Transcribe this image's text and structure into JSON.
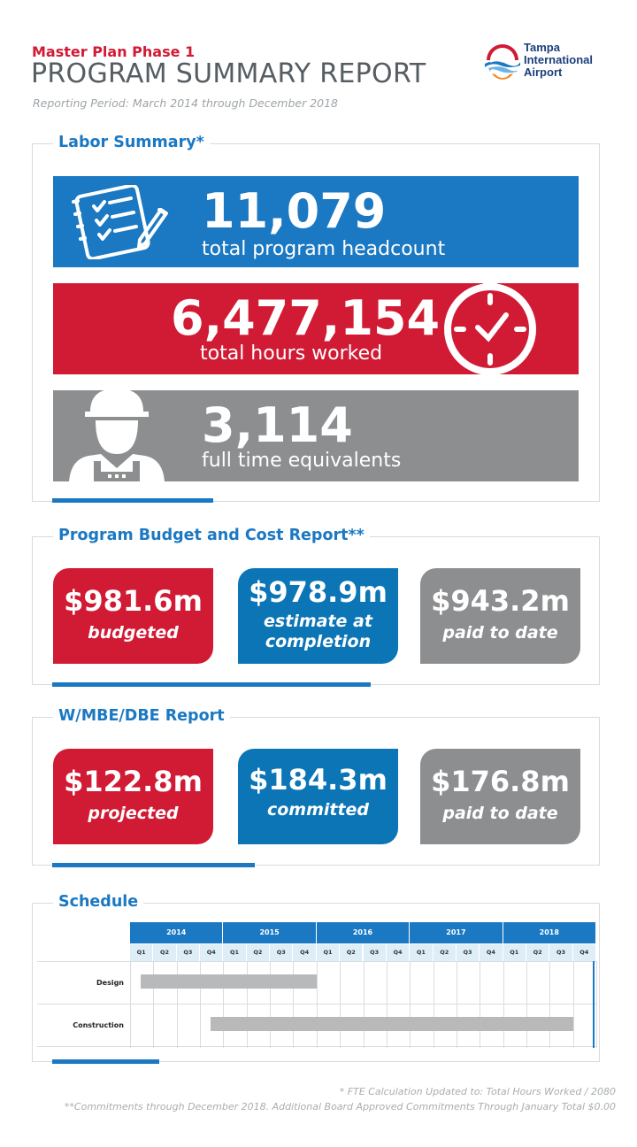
{
  "header": {
    "subtitle": "Master Plan Phase 1",
    "title": "PROGRAM SUMMARY REPORT",
    "period": "Reporting Period: March 2014 through December 2018",
    "logo_lines": [
      "Tampa",
      "International",
      "Airport"
    ]
  },
  "labor": {
    "title": "Labor Summary*",
    "items": [
      {
        "value": "11,079",
        "label": "total program headcount",
        "color": "#1b78c2",
        "icon": "notebook-icon"
      },
      {
        "value": "6,477,154",
        "label": "total hours worked",
        "color": "#d11a34",
        "icon": "clock-icon"
      },
      {
        "value": "3,114",
        "label": "full time equivalents",
        "color": "#8c8e90",
        "icon": "worker-icon"
      }
    ]
  },
  "budget": {
    "title": "Program Budget and Cost Report**",
    "cards": [
      {
        "value": "$981.6m",
        "label": "budgeted",
        "color": "#d11a34"
      },
      {
        "value": "$978.9m",
        "label": "estimate at completion",
        "color": "#0b75b6"
      },
      {
        "value": "$943.2m",
        "label": "paid to date",
        "color": "#8c8e90"
      }
    ]
  },
  "wmbe": {
    "title": "W/MBE/DBE Report",
    "cards": [
      {
        "value": "$122.8m",
        "label": "projected",
        "color": "#d11a34"
      },
      {
        "value": "$184.3m",
        "label": "committed",
        "color": "#0b75b6"
      },
      {
        "value": "$176.8m",
        "label": "paid to date",
        "color": "#8c8e90"
      }
    ]
  },
  "schedule": {
    "title": "Schedule",
    "years": [
      "2014",
      "2015",
      "2016",
      "2017",
      "2018"
    ],
    "quarters": [
      "Q1",
      "Q2",
      "Q3",
      "Q4"
    ],
    "rows": [
      {
        "label": "Design",
        "start_quarter": 1,
        "end_quarter": 8
      },
      {
        "label": "Construction",
        "start_quarter": 4,
        "end_quarter": 19
      }
    ]
  },
  "footnotes": [
    "* FTE Calculation Updated to: Total Hours Worked / 2080",
    "**Commitments through December 2018. Additional Board Approved Commitments Through January Total $0.00"
  ]
}
